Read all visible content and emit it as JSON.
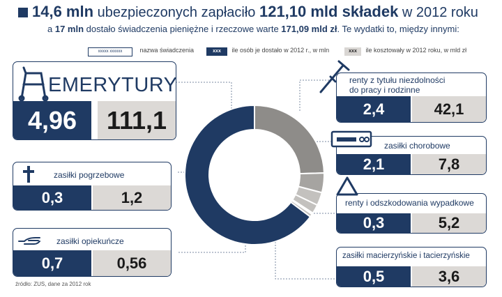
{
  "header": {
    "p1": "14,6 mln",
    "p2": " ubezpieczonych zapłaciło ",
    "p3": "121,10 mld składek",
    "p4": " w 2012 roku"
  },
  "subheader": {
    "p1": "a ",
    "p2": "17 mln",
    "p3": " dostało świadczenia pieniężne i rzeczowe warte ",
    "p4": "171,09 mld zł",
    "p5": ". Te wydatki to, między innymi:"
  },
  "legend": {
    "sample_box": "xxxxx xxxxxx",
    "name_label": "nazwa świadczenia",
    "sample_dark": "xxx",
    "people_label": "ile osób je dostało w 2012 r., w mln",
    "sample_grey": "xxx",
    "cost_label": "ile kosztowały w 2012 roku, w mld zł"
  },
  "chart_data": {
    "type": "pie",
    "categories": [
      "emerytury",
      "renty z tytułu niezdolności do pracy i rodzinne",
      "zasiłki chorobowe",
      "renty i odszkodowania wypadkowe",
      "zasiłki macierzyńskie i tacierzyńskie",
      "zasiłki opiekuńcze",
      "zasiłki pogrzebowe"
    ],
    "values": [
      111.1,
      42.1,
      7.8,
      5.2,
      3.6,
      0.56,
      1.2
    ],
    "people": [
      4.96,
      2.4,
      2.1,
      0.3,
      0.5,
      0.7,
      0.3
    ]
  },
  "cards": {
    "emerytury": {
      "name": "EMERYTURY",
      "people": "4,96",
      "cost": "111,1"
    },
    "renty": {
      "name_line1": "renty z tytułu niezdolności",
      "name_line2": "do pracy i rodzinne",
      "people": "2,4",
      "cost": "42,1"
    },
    "chorobowe": {
      "name": "zasiłki chorobowe",
      "people": "2,1",
      "cost": "7,8"
    },
    "wypadkowe": {
      "name": "renty i odszkodowania wypadkowe",
      "people": "0,3",
      "cost": "5,2"
    },
    "macierzynskie": {
      "name": "zasiłki macierzyńskie i tacierzyńskie",
      "people": "0,5",
      "cost": "3,6"
    },
    "pogrzebowe": {
      "name": "zasiłki pogrzebowe",
      "people": "0,3",
      "cost": "1,2"
    },
    "opiekuncze": {
      "name": "zasiłki opiekuńcze",
      "people": "0,7",
      "cost": "0,56"
    }
  },
  "source": "źródło: ZUS, dane za 2012 rok",
  "colors": {
    "navy": "#1f3a63",
    "grey_dark": "#8e8c89",
    "grey_mid": "#a6a4a1",
    "grey_light": "#c3c1be",
    "value_bg": "#dcd9d6"
  }
}
